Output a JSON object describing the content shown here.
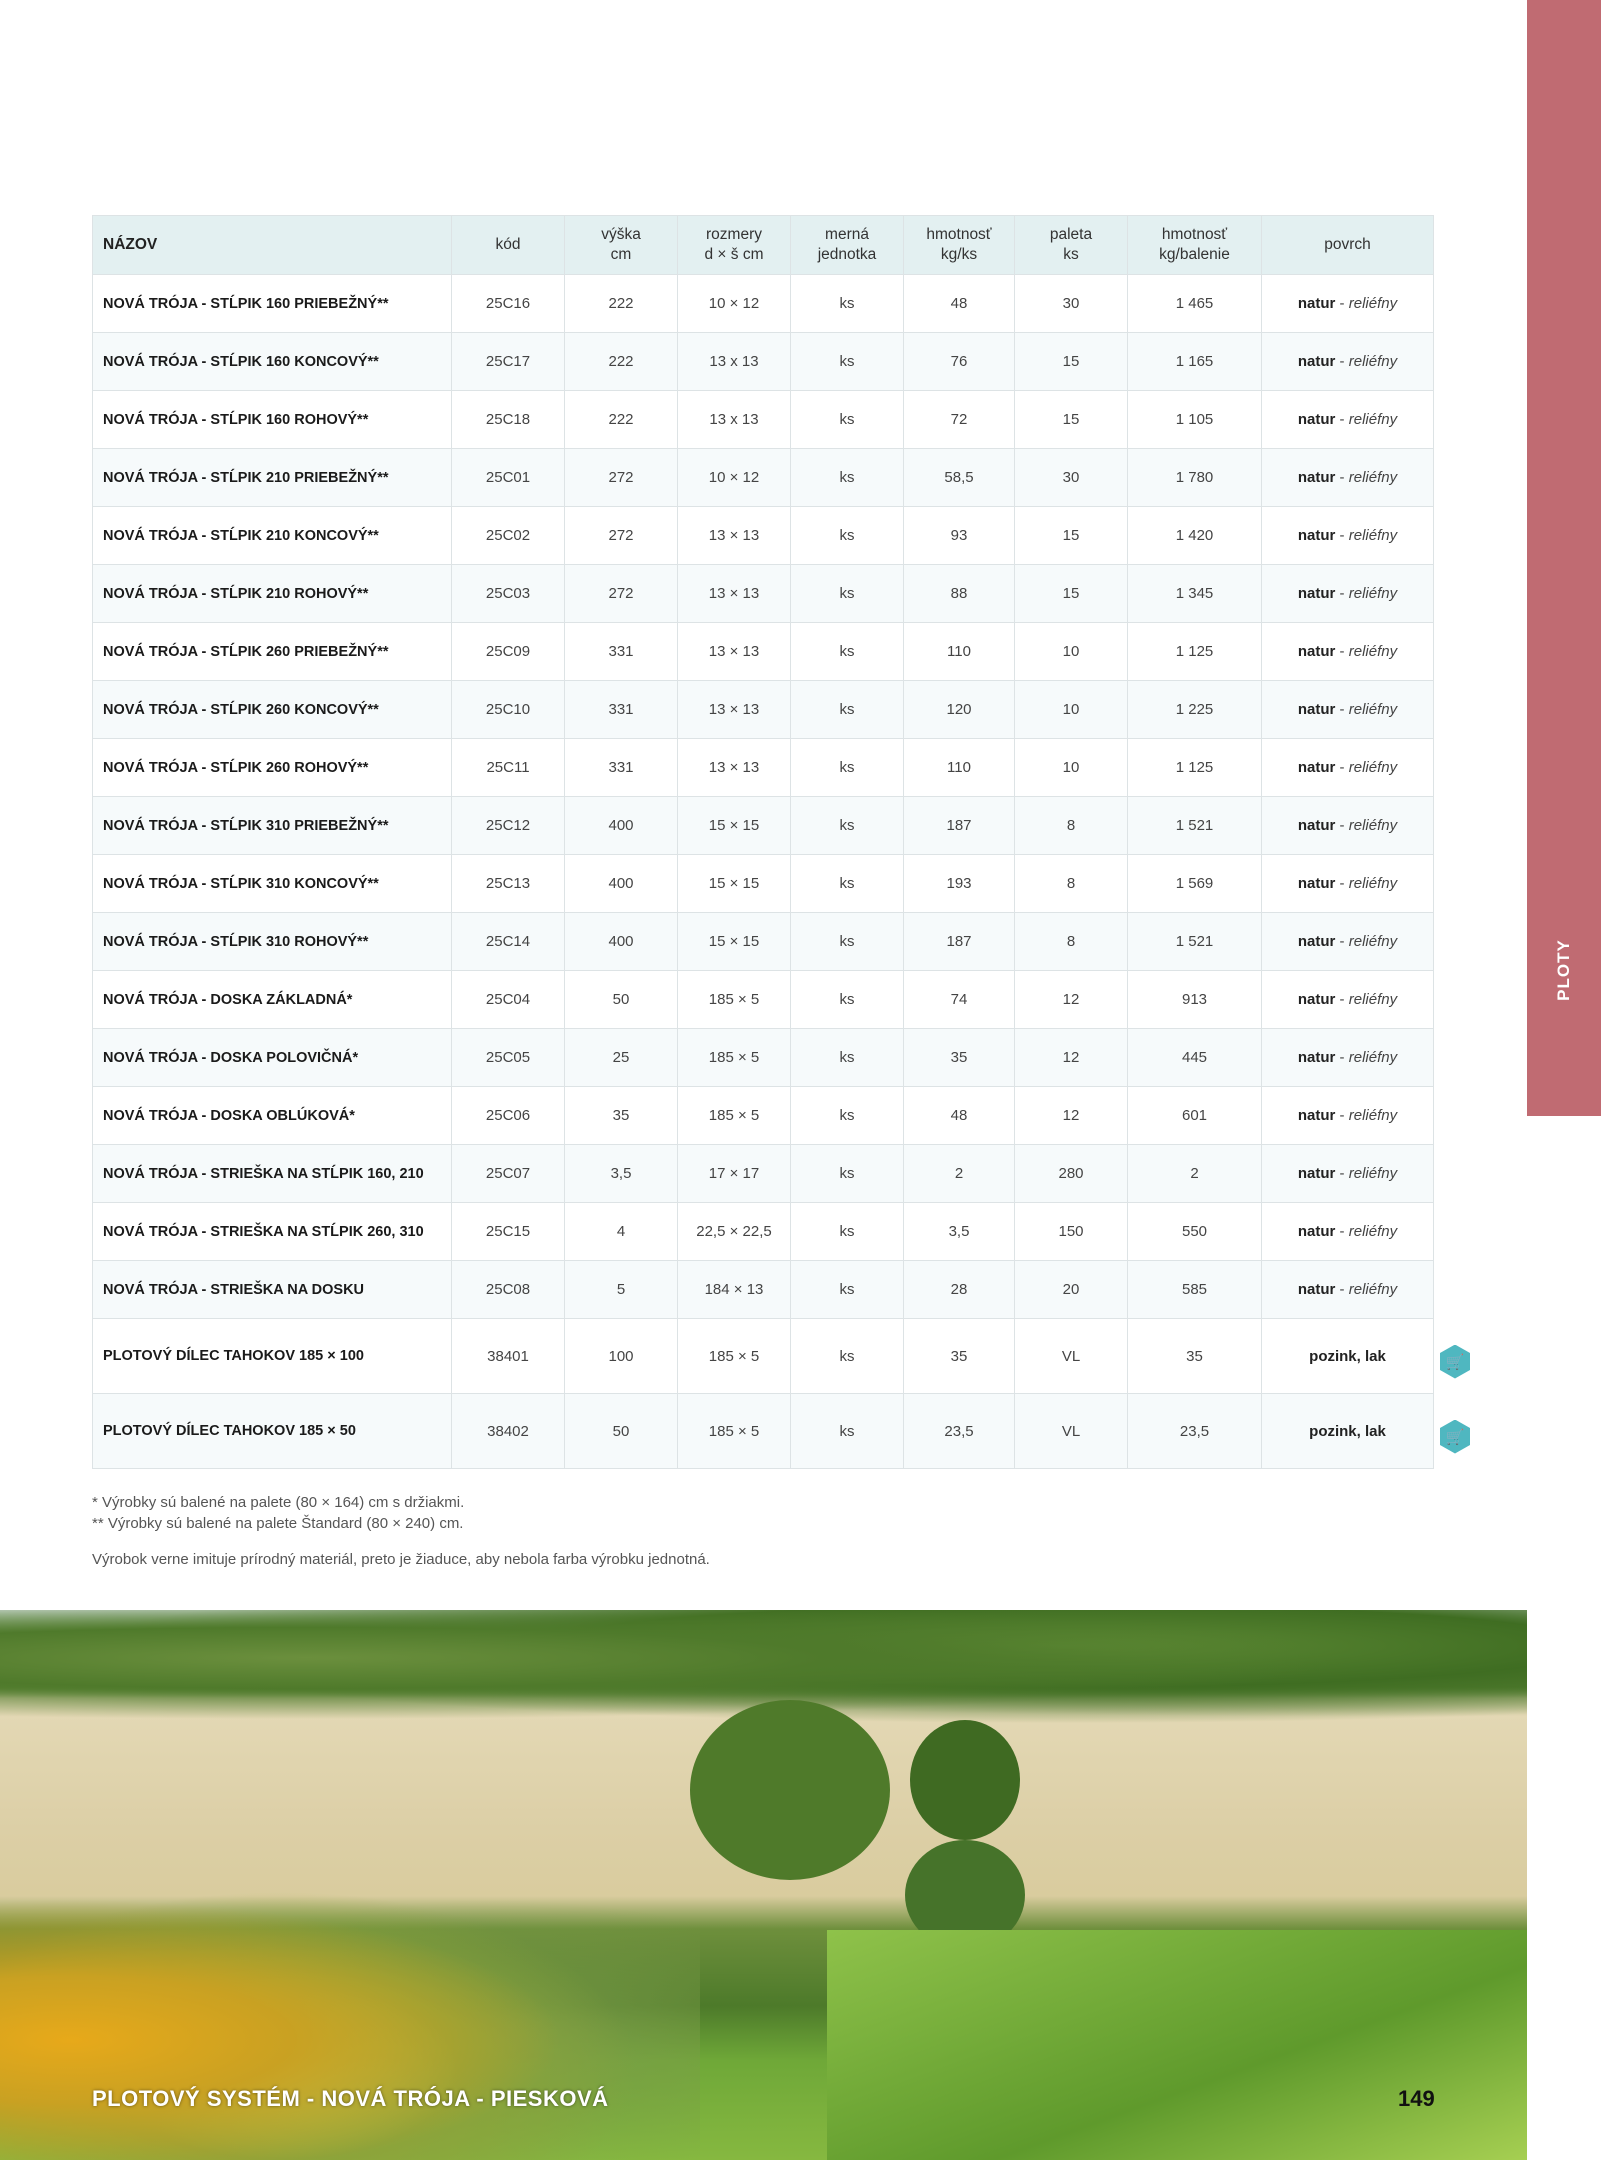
{
  "side_tab": {
    "label": "PLOTY",
    "color": "#c06b72"
  },
  "table": {
    "headers": [
      "NÁZOV",
      "kód",
      "výška\ncm",
      "rozmery\nd × š cm",
      "merná\njednotka",
      "hmotnosť\nkg/ks",
      "paleta\nks",
      "hmotnosť\nkg/balenie",
      "povrch"
    ],
    "rows": [
      {
        "name": "NOVÁ TRÓJA - STĹPIK 160 PRIEBEŽNÝ**",
        "code": "25C16",
        "height": "222",
        "dims": "10 × 12",
        "unit": "ks",
        "weight": "48",
        "pallet": "30",
        "pack_weight": "1 465",
        "surface_bold": "natur",
        "surface_sep": " - ",
        "surface_italic": "reliéfny"
      },
      {
        "name": "NOVÁ TRÓJA - STĹPIK 160 KONCOVÝ**",
        "code": "25C17",
        "height": "222",
        "dims": "13 x 13",
        "unit": "ks",
        "weight": "76",
        "pallet": "15",
        "pack_weight": "1 165",
        "surface_bold": "natur",
        "surface_sep": " - ",
        "surface_italic": "reliéfny"
      },
      {
        "name": "NOVÁ TRÓJA - STĹPIK 160 ROHOVÝ**",
        "code": "25C18",
        "height": "222",
        "dims": "13 x 13",
        "unit": "ks",
        "weight": "72",
        "pallet": "15",
        "pack_weight": "1 105",
        "surface_bold": "natur",
        "surface_sep": " - ",
        "surface_italic": "reliéfny"
      },
      {
        "name": "NOVÁ TRÓJA - STĹPIK 210 PRIEBEŽNÝ**",
        "code": "25C01",
        "height": "272",
        "dims": "10 × 12",
        "unit": "ks",
        "weight": "58,5",
        "pallet": "30",
        "pack_weight": "1 780",
        "surface_bold": "natur",
        "surface_sep": " - ",
        "surface_italic": "reliéfny"
      },
      {
        "name": "NOVÁ TRÓJA - STĹPIK 210 KONCOVÝ**",
        "code": "25C02",
        "height": "272",
        "dims": "13 × 13",
        "unit": "ks",
        "weight": "93",
        "pallet": "15",
        "pack_weight": "1 420",
        "surface_bold": "natur",
        "surface_sep": " - ",
        "surface_italic": "reliéfny"
      },
      {
        "name": "NOVÁ TRÓJA - STĹPIK 210 ROHOVÝ**",
        "code": "25C03",
        "height": "272",
        "dims": "13 × 13",
        "unit": "ks",
        "weight": "88",
        "pallet": "15",
        "pack_weight": "1 345",
        "surface_bold": "natur",
        "surface_sep": " - ",
        "surface_italic": "reliéfny"
      },
      {
        "name": "NOVÁ TRÓJA - STĹPIK 260 PRIEBEŽNÝ**",
        "code": "25C09",
        "height": "331",
        "dims": "13 × 13",
        "unit": "ks",
        "weight": "110",
        "pallet": "10",
        "pack_weight": "1 125",
        "surface_bold": "natur",
        "surface_sep": " - ",
        "surface_italic": "reliéfny"
      },
      {
        "name": "NOVÁ TRÓJA - STĹPIK 260 KONCOVÝ**",
        "code": "25C10",
        "height": "331",
        "dims": "13 × 13",
        "unit": "ks",
        "weight": "120",
        "pallet": "10",
        "pack_weight": "1 225",
        "surface_bold": "natur",
        "surface_sep": " - ",
        "surface_italic": "reliéfny"
      },
      {
        "name": "NOVÁ TRÓJA - STĹPIK 260 ROHOVÝ**",
        "code": "25C11",
        "height": "331",
        "dims": "13 × 13",
        "unit": "ks",
        "weight": "110",
        "pallet": "10",
        "pack_weight": "1 125",
        "surface_bold": "natur",
        "surface_sep": " - ",
        "surface_italic": "reliéfny"
      },
      {
        "name": "NOVÁ TRÓJA - STĹPIK 310 PRIEBEŽNÝ**",
        "code": "25C12",
        "height": "400",
        "dims": "15 × 15",
        "unit": "ks",
        "weight": "187",
        "pallet": "8",
        "pack_weight": "1 521",
        "surface_bold": "natur",
        "surface_sep": " - ",
        "surface_italic": "reliéfny"
      },
      {
        "name": "NOVÁ TRÓJA - STĹPIK 310 KONCOVÝ**",
        "code": "25C13",
        "height": "400",
        "dims": "15 × 15",
        "unit": "ks",
        "weight": "193",
        "pallet": "8",
        "pack_weight": "1 569",
        "surface_bold": "natur",
        "surface_sep": " - ",
        "surface_italic": "reliéfny"
      },
      {
        "name": "NOVÁ TRÓJA - STĹPIK 310 ROHOVÝ**",
        "code": "25C14",
        "height": "400",
        "dims": "15 × 15",
        "unit": "ks",
        "weight": "187",
        "pallet": "8",
        "pack_weight": "1 521",
        "surface_bold": "natur",
        "surface_sep": " - ",
        "surface_italic": "reliéfny"
      },
      {
        "name": "NOVÁ TRÓJA - DOSKA ZÁKLADNÁ*",
        "code": "25C04",
        "height": "50",
        "dims": "185 × 5",
        "unit": "ks",
        "weight": "74",
        "pallet": "12",
        "pack_weight": "913",
        "surface_bold": "natur",
        "surface_sep": " - ",
        "surface_italic": "reliéfny"
      },
      {
        "name": "NOVÁ TRÓJA - DOSKA POLOVIČNÁ*",
        "code": "25C05",
        "height": "25",
        "dims": "185 × 5",
        "unit": "ks",
        "weight": "35",
        "pallet": "12",
        "pack_weight": "445",
        "surface_bold": "natur",
        "surface_sep": " - ",
        "surface_italic": "reliéfny"
      },
      {
        "name": "NOVÁ TRÓJA - DOSKA OBLÚKOVÁ*",
        "code": "25C06",
        "height": "35",
        "dims": "185 × 5",
        "unit": "ks",
        "weight": "48",
        "pallet": "12",
        "pack_weight": "601",
        "surface_bold": "natur",
        "surface_sep": " - ",
        "surface_italic": "reliéfny"
      },
      {
        "name": "NOVÁ TRÓJA - STRIEŠKA NA STĹPIK 160, 210",
        "code": "25C07",
        "height": "3,5",
        "dims": "17 × 17",
        "unit": "ks",
        "weight": "2",
        "pallet": "280",
        "pack_weight": "2",
        "surface_bold": "natur",
        "surface_sep": " - ",
        "surface_italic": "reliéfny"
      },
      {
        "name": "NOVÁ TRÓJA - STRIEŠKA NA STĹPIK 260, 310",
        "code": "25C15",
        "height": "4",
        "dims": "22,5 × 22,5",
        "unit": "ks",
        "weight": "3,5",
        "pallet": "150",
        "pack_weight": "550",
        "surface_bold": "natur",
        "surface_sep": " - ",
        "surface_italic": "reliéfny"
      },
      {
        "name": "NOVÁ TRÓJA - STRIEŠKA NA DOSKU",
        "code": "25C08",
        "height": "5",
        "dims": "184 × 13",
        "unit": "ks",
        "weight": "28",
        "pallet": "20",
        "pack_weight": "585",
        "surface_bold": "natur",
        "surface_sep": " - ",
        "surface_italic": "reliéfny"
      },
      {
        "name": "PLOTOVÝ DÍLEC TAHOKOV 185 × 100",
        "code": "38401",
        "height": "100",
        "dims": "185 × 5",
        "unit": "ks",
        "weight": "35",
        "pallet": "VL",
        "pack_weight": "35",
        "surface_bold": "pozink, lak",
        "surface_sep": "",
        "surface_italic": "",
        "cart": true
      },
      {
        "name": "PLOTOVÝ DÍLEC TAHOKOV 185 × 50",
        "code": "38402",
        "height": "50",
        "dims": "185 × 5",
        "unit": "ks",
        "weight": "23,5",
        "pallet": "VL",
        "pack_weight": "23,5",
        "surface_bold": "pozink, lak",
        "surface_sep": "",
        "surface_italic": "",
        "cart": true
      }
    ],
    "cart_icon": "shopping-cart-icon",
    "cart_color": "#4fb7c0"
  },
  "notes": {
    "note1": "* Výrobky sú balené na palete (80 × 164) cm s držiakmi.",
    "note2": "** Výrobky sú balené na palete Štandard (80 × 240) cm.",
    "note3": "Výrobok verne imituje prírodný materiál, preto je žiaduce, aby nebola farba výrobku jednotná."
  },
  "footer": {
    "title": "PLOTOVÝ SYSTÉM - NOVÁ TRÓJA - PIESKOVÁ",
    "page": "149"
  }
}
